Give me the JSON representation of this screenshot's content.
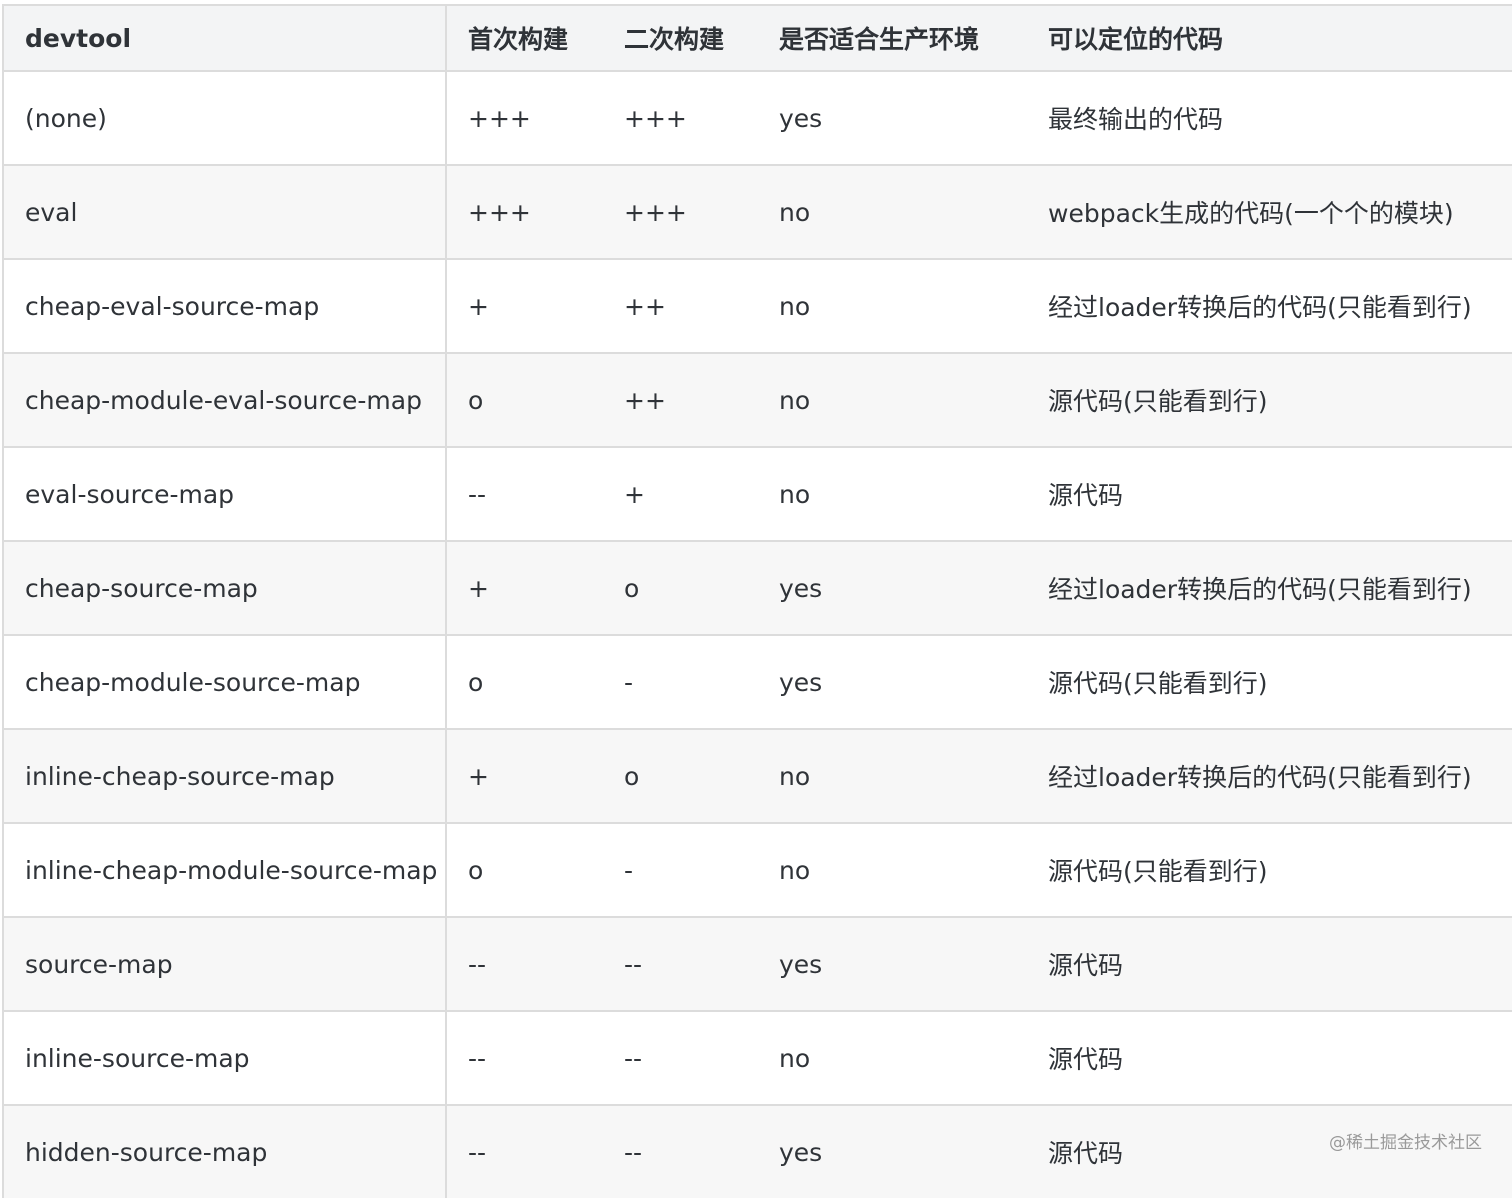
{
  "headers": [
    "devtool",
    "首次构建",
    "二次构建",
    "是否适合生产环境",
    "可以定位的代码"
  ],
  "rows": [
    [
      "(none)",
      "+++",
      "+++",
      "yes",
      "最终输出的代码"
    ],
    [
      "eval",
      "+++",
      "+++",
      "no",
      "webpack生成的代码(一个个的模块)"
    ],
    [
      "cheap-eval-source-map",
      "+",
      "++",
      "no",
      "经过loader转换后的代码(只能看到行)"
    ],
    [
      "cheap-module-eval-source-map",
      "o",
      "++",
      "no",
      "源代码(只能看到行)"
    ],
    [
      "eval-source-map",
      "--",
      "+",
      "no",
      "源代码"
    ],
    [
      "cheap-source-map",
      "+",
      "o",
      "yes",
      "经过loader转换后的代码(只能看到行)"
    ],
    [
      "cheap-module-source-map",
      "o",
      "-",
      "yes",
      "源代码(只能看到行)"
    ],
    [
      "inline-cheap-source-map",
      "+",
      "o",
      "no",
      "经过loader转换后的代码(只能看到行)"
    ],
    [
      "inline-cheap-module-source-map",
      "o",
      "-",
      "no",
      "源代码(只能看到行)"
    ],
    [
      "source-map",
      "--",
      "--",
      "yes",
      "源代码"
    ],
    [
      "inline-source-map",
      "--",
      "--",
      "no",
      "源代码"
    ],
    [
      "hidden-source-map",
      "--",
      "--",
      "yes",
      "源代码"
    ]
  ],
  "watermark": "@稀土掘金技术社区"
}
